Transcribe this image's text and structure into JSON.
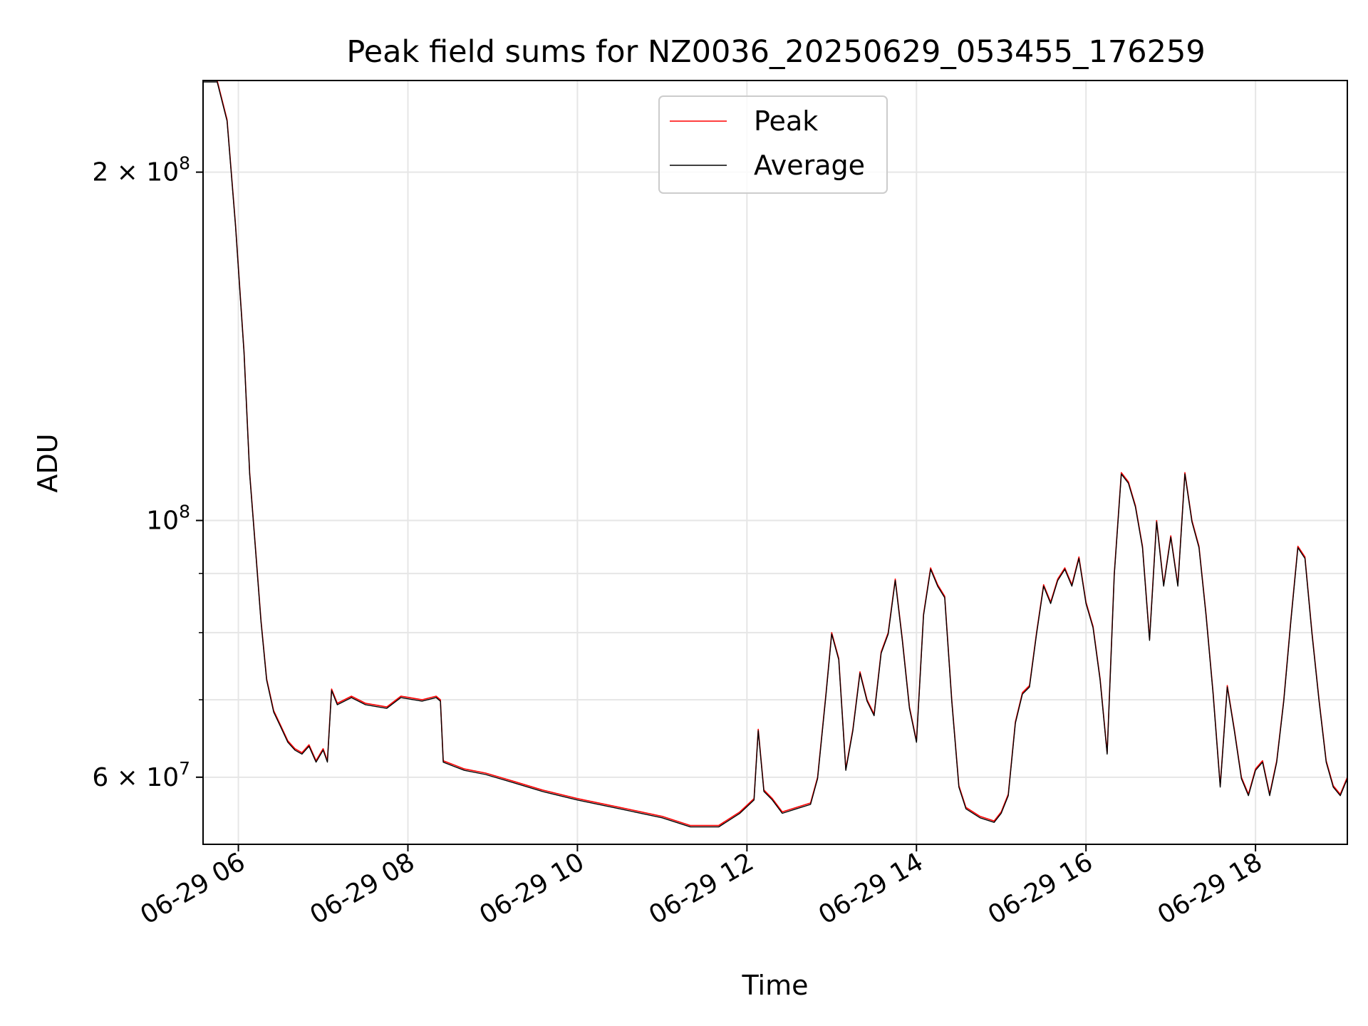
{
  "chart_data": {
    "type": "line",
    "title": "Peak field sums for NZ0036_20250629_053455_176259",
    "xlabel": "Time",
    "ylabel": "ADU",
    "y_scale": "log",
    "ylim": [
      52500000,
      240000000
    ],
    "xlim": [
      "2025-06-29 05:35",
      "2025-06-29 19:05"
    ],
    "grid": true,
    "legend_position": "top-center",
    "x_ticks": [
      {
        "value": "2025-06-29 06:00",
        "label": "06-29 06"
      },
      {
        "value": "2025-06-29 08:00",
        "label": "06-29 08"
      },
      {
        "value": "2025-06-29 10:00",
        "label": "06-29 10"
      },
      {
        "value": "2025-06-29 12:00",
        "label": "06-29 12"
      },
      {
        "value": "2025-06-29 14:00",
        "label": "06-29 14"
      },
      {
        "value": "2025-06-29 16:00",
        "label": "06-29 16"
      },
      {
        "value": "2025-06-29 18:00",
        "label": "06-29 18"
      }
    ],
    "y_ticks": [
      {
        "value": 60000000,
        "base": "6 × 10",
        "exp": "7"
      },
      {
        "value": 100000000,
        "base": "10",
        "exp": "8"
      },
      {
        "value": 200000000,
        "base": "2 × 10",
        "exp": "8"
      }
    ],
    "y_minor_ticks": [
      70000000,
      80000000,
      90000000
    ],
    "series": [
      {
        "name": "Peak",
        "color": "#ff0000",
        "points": [
          [
            "2025-06-29 05:35",
            240000000
          ],
          [
            "2025-06-29 05:45",
            240000000
          ],
          [
            "2025-06-29 05:52",
            222000000
          ],
          [
            "2025-06-29 05:58",
            180000000
          ],
          [
            "2025-06-29 06:04",
            140000000
          ],
          [
            "2025-06-29 06:08",
            110000000
          ],
          [
            "2025-06-29 06:12",
            95000000
          ],
          [
            "2025-06-29 06:16",
            82000000
          ],
          [
            "2025-06-29 06:20",
            73000000
          ],
          [
            "2025-06-29 06:25",
            68500000
          ],
          [
            "2025-06-29 06:30",
            66500000
          ],
          [
            "2025-06-29 06:35",
            64500000
          ],
          [
            "2025-06-29 06:40",
            63500000
          ],
          [
            "2025-06-29 06:45",
            63000000
          ],
          [
            "2025-06-29 06:50",
            64000000
          ],
          [
            "2025-06-29 06:55",
            62000000
          ],
          [
            "2025-06-29 07:00",
            63500000
          ],
          [
            "2025-06-29 07:03",
            62000000
          ],
          [
            "2025-06-29 07:06",
            71500000
          ],
          [
            "2025-06-29 07:10",
            69500000
          ],
          [
            "2025-06-29 07:20",
            70500000
          ],
          [
            "2025-06-29 07:30",
            69500000
          ],
          [
            "2025-06-29 07:45",
            69000000
          ],
          [
            "2025-06-29 07:55",
            70500000
          ],
          [
            "2025-06-29 08:10",
            70000000
          ],
          [
            "2025-06-29 08:20",
            70500000
          ],
          [
            "2025-06-29 08:23",
            70000000
          ],
          [
            "2025-06-29 08:25",
            62000000
          ],
          [
            "2025-06-29 08:40",
            61000000
          ],
          [
            "2025-06-29 08:55",
            60500000
          ],
          [
            "2025-06-29 09:15",
            59500000
          ],
          [
            "2025-06-29 09:35",
            58500000
          ],
          [
            "2025-06-29 10:00",
            57500000
          ],
          [
            "2025-06-29 10:30",
            56500000
          ],
          [
            "2025-06-29 11:00",
            55500000
          ],
          [
            "2025-06-29 11:20",
            54500000
          ],
          [
            "2025-06-29 11:40",
            54500000
          ],
          [
            "2025-06-29 11:55",
            56000000
          ],
          [
            "2025-06-29 12:05",
            57500000
          ],
          [
            "2025-06-29 12:08",
            66000000
          ],
          [
            "2025-06-29 12:12",
            58500000
          ],
          [
            "2025-06-29 12:18",
            57500000
          ],
          [
            "2025-06-29 12:25",
            56000000
          ],
          [
            "2025-06-29 12:35",
            56500000
          ],
          [
            "2025-06-29 12:45",
            57000000
          ],
          [
            "2025-06-29 12:50",
            60000000
          ],
          [
            "2025-06-29 12:56",
            71000000
          ],
          [
            "2025-06-29 13:00",
            80000000
          ],
          [
            "2025-06-29 13:05",
            76000000
          ],
          [
            "2025-06-29 13:10",
            61000000
          ],
          [
            "2025-06-29 13:15",
            66000000
          ],
          [
            "2025-06-29 13:20",
            74000000
          ],
          [
            "2025-06-29 13:25",
            70000000
          ],
          [
            "2025-06-29 13:30",
            68000000
          ],
          [
            "2025-06-29 13:35",
            77000000
          ],
          [
            "2025-06-29 13:40",
            80000000
          ],
          [
            "2025-06-29 13:45",
            89000000
          ],
          [
            "2025-06-29 13:50",
            79000000
          ],
          [
            "2025-06-29 13:55",
            69000000
          ],
          [
            "2025-06-29 14:00",
            64500000
          ],
          [
            "2025-06-29 14:05",
            83000000
          ],
          [
            "2025-06-29 14:10",
            91000000
          ],
          [
            "2025-06-29 14:15",
            88000000
          ],
          [
            "2025-06-29 14:20",
            86000000
          ],
          [
            "2025-06-29 14:25",
            70000000
          ],
          [
            "2025-06-29 14:30",
            59000000
          ],
          [
            "2025-06-29 14:35",
            56500000
          ],
          [
            "2025-06-29 14:45",
            55500000
          ],
          [
            "2025-06-29 14:55",
            55000000
          ],
          [
            "2025-06-29 15:00",
            56000000
          ],
          [
            "2025-06-29 15:05",
            58000000
          ],
          [
            "2025-06-29 15:10",
            67000000
          ],
          [
            "2025-06-29 15:15",
            71000000
          ],
          [
            "2025-06-29 15:20",
            72000000
          ],
          [
            "2025-06-29 15:25",
            80000000
          ],
          [
            "2025-06-29 15:30",
            88000000
          ],
          [
            "2025-06-29 15:35",
            85000000
          ],
          [
            "2025-06-29 15:40",
            89000000
          ],
          [
            "2025-06-29 15:45",
            91000000
          ],
          [
            "2025-06-29 15:50",
            88000000
          ],
          [
            "2025-06-29 15:55",
            93000000
          ],
          [
            "2025-06-29 16:00",
            85000000
          ],
          [
            "2025-06-29 16:05",
            81000000
          ],
          [
            "2025-06-29 16:10",
            73000000
          ],
          [
            "2025-06-29 16:15",
            63000000
          ],
          [
            "2025-06-29 16:20",
            90000000
          ],
          [
            "2025-06-29 16:25",
            110000000
          ],
          [
            "2025-06-29 16:30",
            108000000
          ],
          [
            "2025-06-29 16:35",
            103000000
          ],
          [
            "2025-06-29 16:40",
            95000000
          ],
          [
            "2025-06-29 16:45",
            79000000
          ],
          [
            "2025-06-29 16:50",
            100000000
          ],
          [
            "2025-06-29 16:55",
            88000000
          ],
          [
            "2025-06-29 17:00",
            97000000
          ],
          [
            "2025-06-29 17:05",
            88000000
          ],
          [
            "2025-06-29 17:10",
            110000000
          ],
          [
            "2025-06-29 17:15",
            100000000
          ],
          [
            "2025-06-29 17:20",
            95000000
          ],
          [
            "2025-06-29 17:25",
            83000000
          ],
          [
            "2025-06-29 17:30",
            71000000
          ],
          [
            "2025-06-29 17:35",
            59000000
          ],
          [
            "2025-06-29 17:40",
            72000000
          ],
          [
            "2025-06-29 17:45",
            66000000
          ],
          [
            "2025-06-29 17:50",
            60000000
          ],
          [
            "2025-06-29 17:55",
            58000000
          ],
          [
            "2025-06-29 18:00",
            61000000
          ],
          [
            "2025-06-29 18:05",
            62000000
          ],
          [
            "2025-06-29 18:10",
            58000000
          ],
          [
            "2025-06-29 18:15",
            62000000
          ],
          [
            "2025-06-29 18:20",
            70000000
          ],
          [
            "2025-06-29 18:25",
            82000000
          ],
          [
            "2025-06-29 18:30",
            95000000
          ],
          [
            "2025-06-29 18:35",
            93000000
          ],
          [
            "2025-06-29 18:40",
            80000000
          ],
          [
            "2025-06-29 18:45",
            70000000
          ],
          [
            "2025-06-29 18:50",
            62000000
          ],
          [
            "2025-06-29 18:55",
            59000000
          ],
          [
            "2025-06-29 19:00",
            58000000
          ],
          [
            "2025-06-29 19:05",
            60000000
          ]
        ]
      },
      {
        "name": "Average",
        "color": "#000000",
        "points": []
      }
    ]
  }
}
